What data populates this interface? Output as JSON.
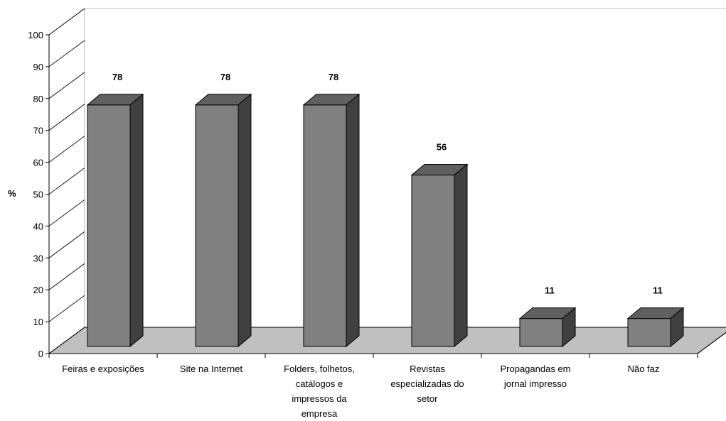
{
  "chart_data": {
    "type": "bar",
    "title": "",
    "xlabel": "",
    "ylabel": "%",
    "ylim": [
      0,
      100
    ],
    "yticks": [
      "0",
      "10",
      "20",
      "30",
      "40",
      "50",
      "60",
      "70",
      "80",
      "90",
      "100"
    ],
    "categories": [
      [
        "Feiras e exposições"
      ],
      [
        "Site na Internet"
      ],
      [
        "Folders, folhetos,",
        "catálogos e",
        "impressos da",
        "empresa"
      ],
      [
        "Revistas",
        "especializadas do",
        "setor"
      ],
      [
        "Propagandas em",
        "jornal impresso"
      ],
      [
        "Não faz"
      ]
    ],
    "values": [
      78,
      78,
      78,
      56,
      11,
      11
    ],
    "data_labels": [
      "78",
      "78",
      "78",
      "56",
      "11",
      "11"
    ],
    "style": "3d-column",
    "grid": false,
    "colors": {
      "bar_front": "#808080",
      "bar_top": "#606060",
      "bar_side": "#404040",
      "floor": "#c0c0c0",
      "walls": "#ffffff"
    }
  }
}
